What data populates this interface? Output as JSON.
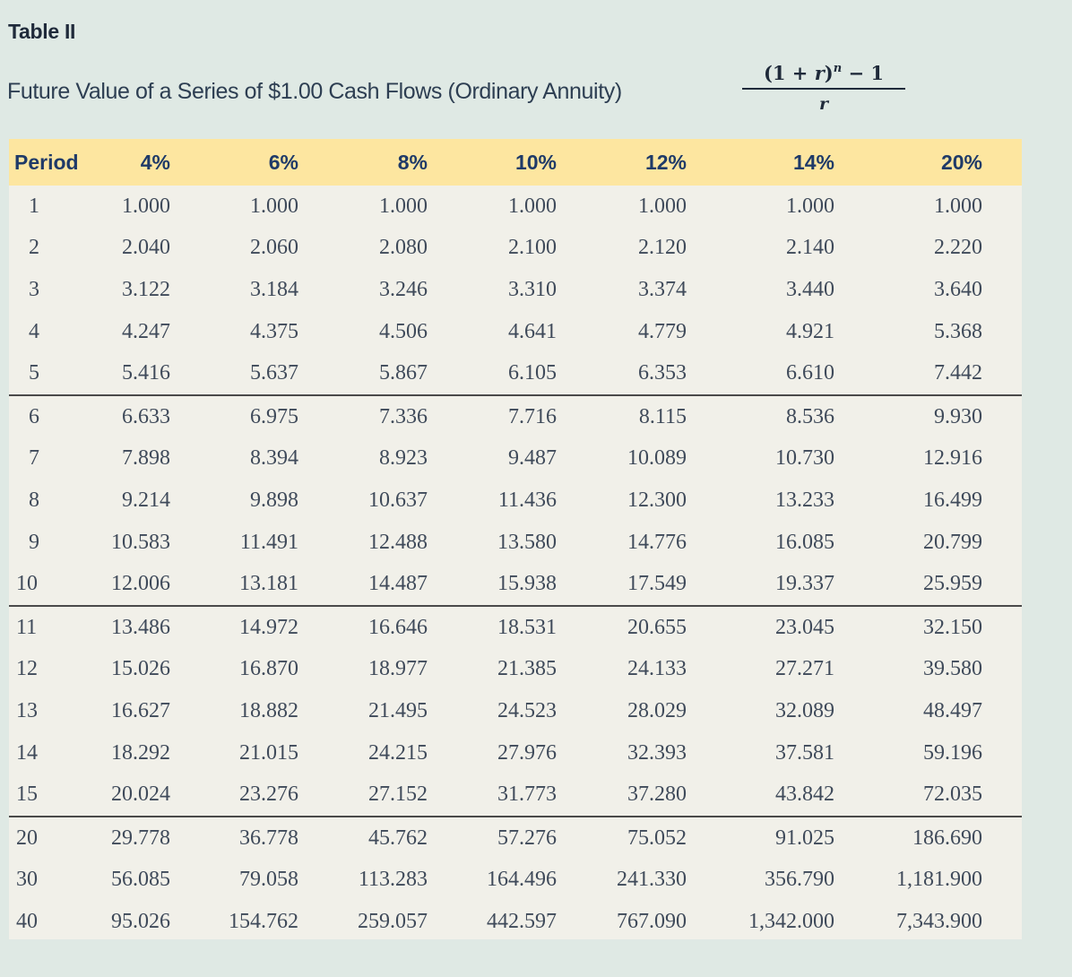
{
  "title": "Table II",
  "subtitle": "Future Value of a Series of $1.00 Cash Flows (Ordinary Annuity)",
  "formula": {
    "numerator_base": "(1 + ",
    "numerator_var": "r",
    "numerator_close": ")",
    "exponent": "n",
    "numerator_tail": " − 1",
    "denominator": "r"
  },
  "table": {
    "headers": [
      "Period",
      "4%",
      "6%",
      "8%",
      "10%",
      "12%",
      "14%",
      "20%"
    ],
    "rows": [
      [
        "1",
        "1.000",
        "1.000",
        "1.000",
        "1.000",
        "1.000",
        "1.000",
        "1.000"
      ],
      [
        "2",
        "2.040",
        "2.060",
        "2.080",
        "2.100",
        "2.120",
        "2.140",
        "2.220"
      ],
      [
        "3",
        "3.122",
        "3.184",
        "3.246",
        "3.310",
        "3.374",
        "3.440",
        "3.640"
      ],
      [
        "4",
        "4.247",
        "4.375",
        "4.506",
        "4.641",
        "4.779",
        "4.921",
        "5.368"
      ],
      [
        "5",
        "5.416",
        "5.637",
        "5.867",
        "6.105",
        "6.353",
        "6.610",
        "7.442"
      ],
      [
        "6",
        "6.633",
        "6.975",
        "7.336",
        "7.716",
        "8.115",
        "8.536",
        "9.930"
      ],
      [
        "7",
        "7.898",
        "8.394",
        "8.923",
        "9.487",
        "10.089",
        "10.730",
        "12.916"
      ],
      [
        "8",
        "9.214",
        "9.898",
        "10.637",
        "11.436",
        "12.300",
        "13.233",
        "16.499"
      ],
      [
        "9",
        "10.583",
        "11.491",
        "12.488",
        "13.580",
        "14.776",
        "16.085",
        "20.799"
      ],
      [
        "10",
        "12.006",
        "13.181",
        "14.487",
        "15.938",
        "17.549",
        "19.337",
        "25.959"
      ],
      [
        "11",
        "13.486",
        "14.972",
        "16.646",
        "18.531",
        "20.655",
        "23.045",
        "32.150"
      ],
      [
        "12",
        "15.026",
        "16.870",
        "18.977",
        "21.385",
        "24.133",
        "27.271",
        "39.580"
      ],
      [
        "13",
        "16.627",
        "18.882",
        "21.495",
        "24.523",
        "28.029",
        "32.089",
        "48.497"
      ],
      [
        "14",
        "18.292",
        "21.015",
        "24.215",
        "27.976",
        "32.393",
        "37.581",
        "59.196"
      ],
      [
        "15",
        "20.024",
        "23.276",
        "27.152",
        "31.773",
        "37.280",
        "43.842",
        "72.035"
      ],
      [
        "20",
        "29.778",
        "36.778",
        "45.762",
        "57.276",
        "75.052",
        "91.025",
        "186.690"
      ],
      [
        "30",
        "56.085",
        "79.058",
        "113.283",
        "164.496",
        "241.330",
        "356.790",
        "1,181.900"
      ],
      [
        "40",
        "95.026",
        "154.762",
        "259.057",
        "442.597",
        "767.090",
        "1,342.000",
        "7,343.900"
      ]
    ]
  }
}
